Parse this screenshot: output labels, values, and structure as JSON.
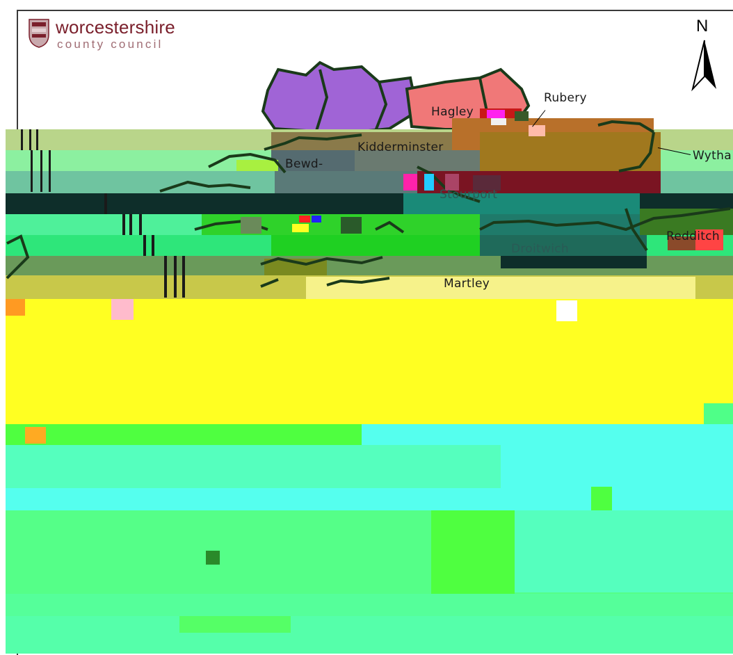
{
  "logo": {
    "line1": "worcestershire",
    "line2": "county council"
  },
  "north_arrow": {
    "label": "N"
  },
  "places": {
    "hagley": "Hagley",
    "rubery": "Rubery",
    "wythall": "Wytha",
    "kidderminster": "Kidderminster",
    "bewdley": "Bewd-",
    "stourport": "Stourport",
    "droitwich": "Droitwich",
    "redditch": "Redditch",
    "martley": "Martley"
  },
  "colors": {
    "frame": "#3a3a3a",
    "logo_text": "#7a1f2b",
    "purple_region": "#a064d6",
    "salmon_region": "#f07878",
    "brown_region": "#b8702a",
    "green_region": "#2fd22a",
    "yellow_band": "#ffff22",
    "cyan_band": "#55ffee",
    "lightgreen_band": "#55ff88",
    "boundary": "#1a3a1a"
  }
}
